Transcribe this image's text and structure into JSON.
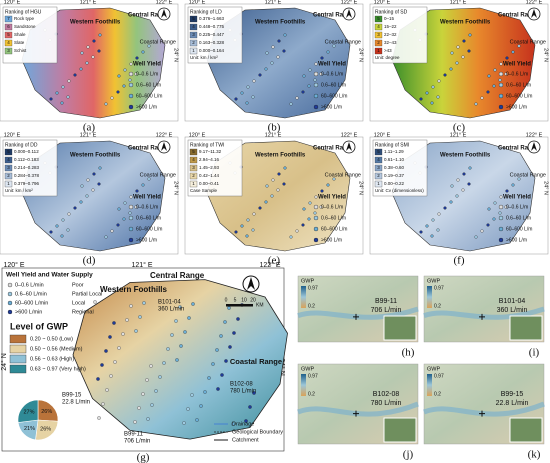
{
  "coords": {
    "lon": [
      "120° E",
      "121° E",
      "122° E"
    ],
    "lat": "24° N"
  },
  "well_yield": {
    "title": "Well Yield",
    "items": [
      "0–0.6 L/m",
      "0.6–60 L/m",
      "60–600 L/m",
      ">600 L/m"
    ]
  },
  "small_panels": [
    {
      "label": "(a)",
      "legend_title": "Ranking of HGU",
      "regions": [
        "Central Range",
        "Western Foothills",
        "Coastal Range"
      ],
      "legend": [
        {
          "rank": "7",
          "range": "Rock type"
        },
        {
          "rank": "6",
          "range": "Sandstone"
        },
        {
          "rank": "5",
          "range": "Shale"
        },
        {
          "rank": "4",
          "range": "Slate"
        },
        {
          "rank": "3",
          "range": "Schist"
        }
      ]
    },
    {
      "label": "(b)",
      "legend_title": "Ranking of LD",
      "regions": [
        "Central Range",
        "Western Foothills",
        "Coastal Range"
      ],
      "unit": "Unit: km / km²",
      "legend": [
        {
          "rank": "5",
          "range": "0.376–1.663"
        },
        {
          "rank": "4",
          "range": "0.448–0.775"
        },
        {
          "rank": "3",
          "range": "0.225–0.447"
        },
        {
          "rank": "2",
          "range": "0.163–0.328"
        },
        {
          "rank": "1",
          "range": "0.000–0.164"
        }
      ]
    },
    {
      "label": "(c)",
      "legend_title": "Ranking of SD",
      "regions": [
        "Central Range",
        "Western Foothills",
        "Coastal Range"
      ],
      "unit": "Unit: degree",
      "legend": [
        {
          "rank": "5",
          "range": "0–15"
        },
        {
          "rank": "4",
          "range": "15–22"
        },
        {
          "rank": "3",
          "range": "22–32"
        },
        {
          "rank": "2",
          "range": "32–43"
        },
        {
          "rank": "1",
          "range": ">43"
        }
      ]
    },
    {
      "label": "(d)",
      "legend_title": "Ranking of DD",
      "regions": [
        "Central Range",
        "Western Foothills",
        "Coastal Range"
      ],
      "unit": "Unit: km / km²",
      "legend": [
        {
          "rank": "5",
          "range": "0.000–0.112"
        },
        {
          "rank": "4",
          "range": "0.112–0.183"
        },
        {
          "rank": "3",
          "range": "0.214–0.283"
        },
        {
          "rank": "2",
          "range": "0.284–0.378"
        },
        {
          "rank": "1",
          "range": "0.379–0.796"
        }
      ]
    },
    {
      "label": "(e)",
      "legend_title": "Ranking of TWI",
      "regions": [
        "Central Range",
        "Western Foothills",
        "Coastal Range"
      ],
      "unit": "Case Sample",
      "legend": [
        {
          "rank": "5",
          "range": "9.17–11.32"
        },
        {
          "rank": "4",
          "range": "2.94–4.16"
        },
        {
          "rank": "3",
          "range": "1.45–2.93"
        },
        {
          "rank": "2",
          "range": "0.42–1.44"
        },
        {
          "rank": "1",
          "range": "0.00–0.41"
        }
      ]
    },
    {
      "label": "(f)",
      "legend_title": "Ranking of SMI",
      "regions": [
        "Central Range",
        "Western Foothills",
        "Coastal Range"
      ],
      "unit": "Unit: Cv (dimensionless)",
      "legend": [
        {
          "rank": "5",
          "range": "1.11–1.29"
        },
        {
          "rank": "4",
          "range": "0.61–1.10"
        },
        {
          "rank": "3",
          "range": "0.38–0.60"
        },
        {
          "rank": "2",
          "range": "0.19–0.37"
        },
        {
          "rank": "1",
          "range": "0.00–0.22"
        }
      ]
    }
  ],
  "main_panel": {
    "label": "(g)",
    "supply_title": "Well Yield and Water Supply",
    "supply": [
      {
        "range": "0–0.6 L/min",
        "level": "Poor"
      },
      {
        "range": "0.6–60 L/min",
        "level": "Partial Local"
      },
      {
        "range": "60–600 L/min",
        "level": "Local"
      },
      {
        "range": ">600 L/min",
        "level": "Regional"
      }
    ],
    "gwp_title": "Level of GWP",
    "gwp": [
      "0.20 ~ 0.50 (Low)",
      "0.50 ~ 0.56 (Medium)",
      "0.56 ~ 0.63 (High)",
      "0.63 ~ 0.97 (Very high)"
    ],
    "pie": {
      "values": [
        26,
        26,
        21,
        27
      ],
      "value_labels": [
        "26%",
        "26%",
        "21%",
        "27%"
      ]
    },
    "regions": [
      "Western Foothills",
      "Central Range",
      "Coastal Range"
    ],
    "wells": [
      {
        "id": "B101-04",
        "yield": "360 L/min"
      },
      {
        "id": "B99-15",
        "yield": "22.8 L/min"
      },
      {
        "id": "B102-08",
        "yield": "780 L/min"
      },
      {
        "id": "B99-11",
        "yield": "706 L/min"
      }
    ],
    "scale": [
      "0",
      "5",
      "10",
      "20"
    ],
    "scale_unit": "KM",
    "boundaries": [
      "Drainage",
      "Geological Boundary",
      "Catchment"
    ]
  },
  "photos": [
    {
      "label": "(h)",
      "bar_title": "GWP",
      "bar_top": "0.97",
      "bar_bottom": "0.2",
      "well": "B99-11",
      "yield": "706 L/min"
    },
    {
      "label": "(i)",
      "bar_title": "GWP",
      "bar_top": "0.97",
      "bar_bottom": "0.2",
      "well": "B101-04",
      "yield": "360 L/min"
    },
    {
      "label": "(j)",
      "bar_title": "GWP",
      "bar_top": "0.97",
      "bar_bottom": "0.2",
      "well": "B102-08",
      "yield": "780 L/min"
    },
    {
      "label": "(k)",
      "bar_title": "GWP",
      "bar_top": "0.97",
      "bar_bottom": "0.2",
      "well": "B99-15",
      "yield": "22.8 L/min"
    }
  ]
}
